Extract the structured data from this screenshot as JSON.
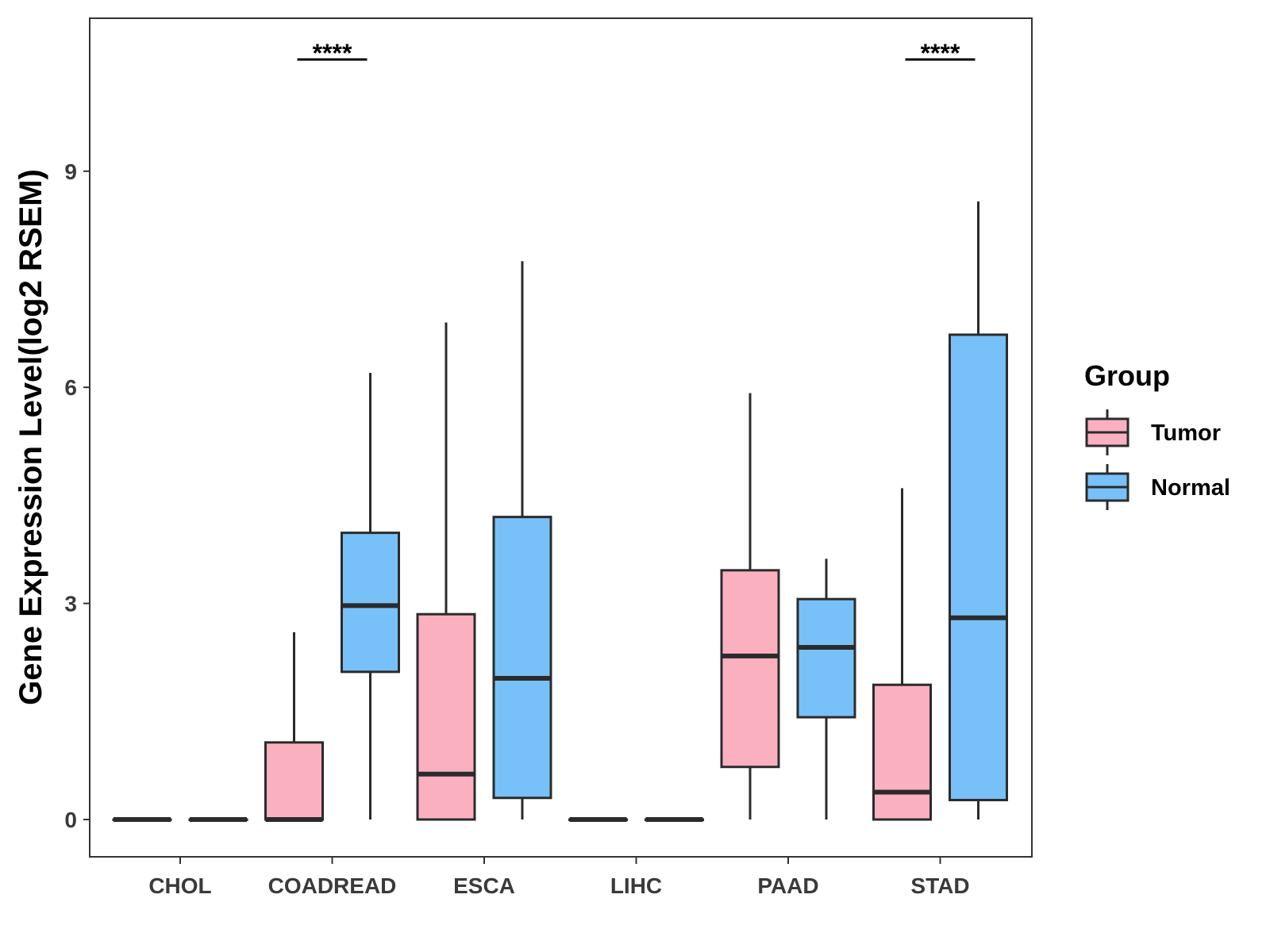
{
  "chart_data": {
    "type": "boxplot",
    "title": "",
    "xlabel": "",
    "ylabel": "Gene Expression Level(log2 RSEM)",
    "ylim": [
      -0.5,
      11.1
    ],
    "yticks": [
      0,
      3,
      6,
      9
    ],
    "ytick_labels": [
      "0",
      "3",
      "6",
      "9"
    ],
    "grid": false,
    "categories": [
      "CHOL",
      "COADREAD",
      "ESCA",
      "LIHC",
      "PAAD",
      "STAD"
    ],
    "legend": {
      "title": "Group",
      "position": "right",
      "entries": [
        {
          "name": "Tumor",
          "color": "#FBB0C0"
        },
        {
          "name": "Normal",
          "color": "#77C1F8"
        }
      ]
    },
    "series": [
      {
        "name": "Tumor",
        "color": "#FBB0C0",
        "boxes": [
          {
            "category": "CHOL",
            "min": 0,
            "q1": 0,
            "median": 0,
            "q3": 0,
            "max": 0
          },
          {
            "category": "COADREAD",
            "min": 0,
            "q1": 0,
            "median": 0,
            "q3": 1.07,
            "max": 2.6
          },
          {
            "category": "ESCA",
            "min": 0,
            "q1": 0,
            "median": 0.63,
            "q3": 2.85,
            "max": 6.9
          },
          {
            "category": "LIHC",
            "min": 0,
            "q1": 0,
            "median": 0,
            "q3": 0,
            "max": 0
          },
          {
            "category": "PAAD",
            "min": 0,
            "q1": 0.73,
            "median": 2.27,
            "q3": 3.46,
            "max": 5.92
          },
          {
            "category": "STAD",
            "min": 0,
            "q1": 0,
            "median": 0.38,
            "q3": 1.87,
            "max": 4.6
          }
        ]
      },
      {
        "name": "Normal",
        "color": "#77C1F8",
        "boxes": [
          {
            "category": "CHOL",
            "min": 0,
            "q1": 0,
            "median": 0,
            "q3": 0,
            "max": 0
          },
          {
            "category": "COADREAD",
            "min": 0,
            "q1": 2.05,
            "median": 2.97,
            "q3": 3.98,
            "max": 6.2
          },
          {
            "category": "ESCA",
            "min": 0,
            "q1": 0.3,
            "median": 1.96,
            "q3": 4.2,
            "max": 7.75
          },
          {
            "category": "LIHC",
            "min": 0,
            "q1": 0,
            "median": 0,
            "q3": 0,
            "max": 0
          },
          {
            "category": "PAAD",
            "min": 0,
            "q1": 1.42,
            "median": 2.39,
            "q3": 3.06,
            "max": 3.62
          },
          {
            "category": "STAD",
            "min": 0,
            "q1": 0.27,
            "median": 2.8,
            "q3": 6.73,
            "max": 8.58
          }
        ]
      }
    ],
    "annotations": [
      {
        "category": "COADREAD",
        "text": "****"
      },
      {
        "category": "STAD",
        "text": "****"
      }
    ]
  }
}
